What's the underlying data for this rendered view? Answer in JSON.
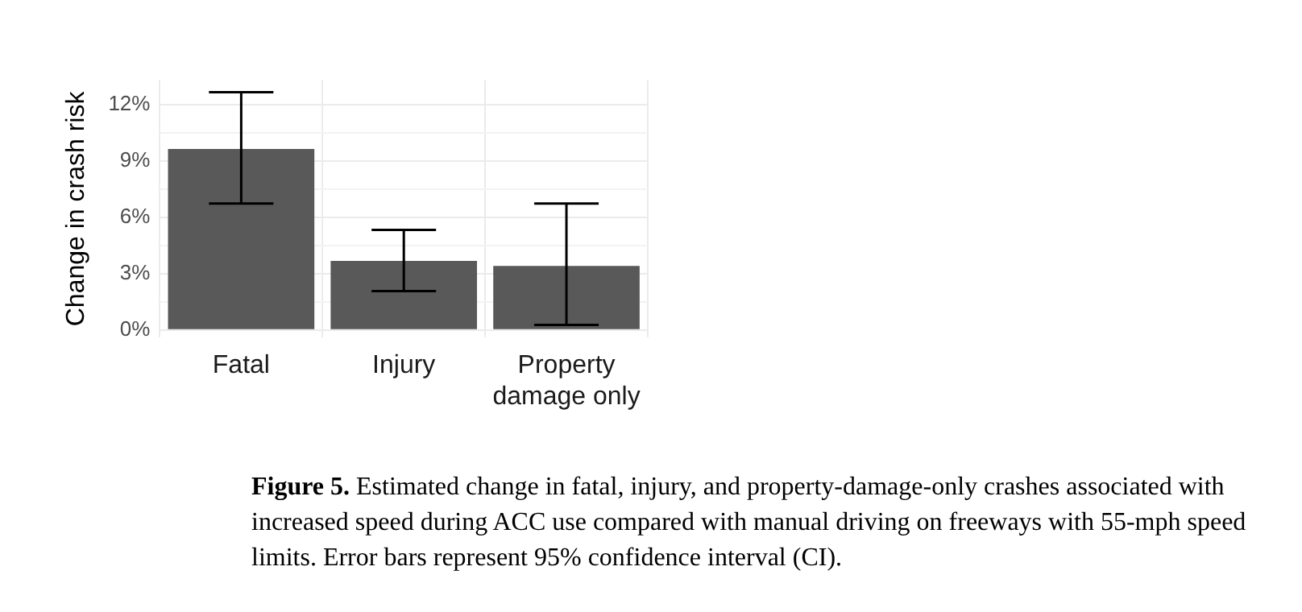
{
  "chart_data": {
    "type": "bar",
    "ylabel": "Change in crash risk",
    "categories": [
      "Fatal",
      "Injury",
      "Property damage only"
    ],
    "values": [
      9.64,
      3.68,
      3.41
    ],
    "errors": [
      [
        6.74,
        12.66
      ],
      [
        2.07,
        5.33
      ],
      [
        0.27,
        6.74
      ]
    ],
    "color": "#595959",
    "ylim": [
      -0.4,
      13.3
    ],
    "yticks": [
      {
        "value": 0,
        "label": "0%"
      },
      {
        "value": 1.5,
        "label": null
      },
      {
        "value": 3,
        "label": "3%"
      },
      {
        "value": 4.5,
        "label": null
      },
      {
        "value": 6,
        "label": "6%"
      },
      {
        "value": 7.5,
        "label": null
      },
      {
        "value": 9,
        "label": "9%"
      },
      {
        "value": 10.5,
        "label": null
      },
      {
        "value": 12,
        "label": "12%"
      }
    ],
    "grid": true,
    "annotations": [
      "Figure 5. Estimated change in fatal, injury, and property-damage-only crashes associated with increased speed during ACC use compared with manual driving on freeways with 55-mph speed limits. Error bars represent 95% confidence interval (CI)."
    ]
  }
}
